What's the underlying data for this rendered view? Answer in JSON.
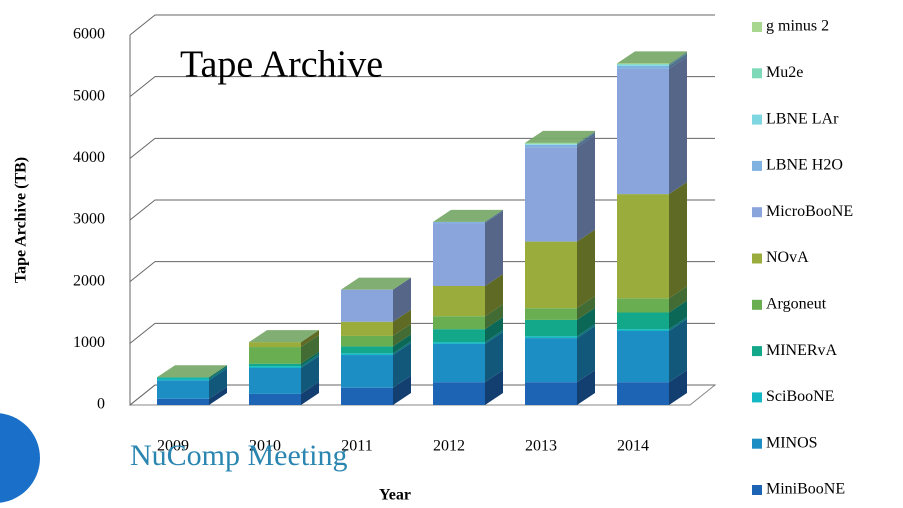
{
  "chart_data": {
    "type": "bar3d_stacked",
    "title": "Tape Archive",
    "annotation": "NuComp Meeting",
    "x_label": "Year",
    "y_label": "Tape Archive (TB)",
    "categories": [
      "2009",
      "2010",
      "2011",
      "2012",
      "2013",
      "2014"
    ],
    "series": [
      {
        "name": "MiniBooNE",
        "color": "#1e64b4",
        "values": [
          100,
          180,
          280,
          370,
          370,
          370
        ]
      },
      {
        "name": "MINOS",
        "color": "#1c8ec4",
        "values": [
          300,
          420,
          530,
          620,
          715,
          830
        ]
      },
      {
        "name": "SciBooNE",
        "color": "#14b8c4",
        "values": [
          30,
          30,
          30,
          30,
          30,
          30
        ]
      },
      {
        "name": "MINERvA",
        "color": "#14a88a",
        "values": [
          20,
          40,
          110,
          210,
          265,
          270
        ]
      },
      {
        "name": "Argoneut",
        "color": "#6aae52",
        "values": [
          0,
          270,
          170,
          210,
          190,
          230
        ]
      },
      {
        "name": "NOvA",
        "color": "#9aad3c",
        "values": [
          0,
          80,
          230,
          490,
          1080,
          1690
        ]
      },
      {
        "name": "MicroBooNE",
        "color": "#8aa4dc",
        "values": [
          0,
          0,
          520,
          1020,
          1530,
          2030
        ]
      },
      {
        "name": "LBNE H2O",
        "color": "#7fb2e0",
        "values": [
          0,
          0,
          0,
          20,
          40,
          50
        ]
      },
      {
        "name": "LBNE LAr",
        "color": "#7ed7e0",
        "values": [
          0,
          0,
          0,
          0,
          10,
          20
        ]
      },
      {
        "name": "Mu2e",
        "color": "#7dd9b8",
        "values": [
          0,
          0,
          0,
          0,
          10,
          10
        ]
      },
      {
        "name": "g minus 2",
        "color": "#a8d890",
        "values": [
          0,
          0,
          0,
          0,
          10,
          10
        ]
      }
    ],
    "ylim": [
      0,
      6000
    ],
    "yticks": [
      0,
      1000,
      2000,
      3000,
      4000,
      5000,
      6000
    ],
    "grid": true
  }
}
